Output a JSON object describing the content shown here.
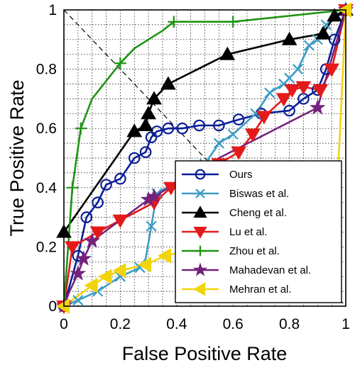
{
  "chart_data": {
    "type": "line",
    "title": "",
    "xlabel": "False Positive Rate",
    "ylabel": "True Positive Rate",
    "xlim": [
      0,
      1
    ],
    "ylim": [
      0,
      1
    ],
    "xticks": [
      "0",
      "0.2",
      "0.4",
      "0.6",
      "0.8",
      "1"
    ],
    "yticks": [
      "0",
      "0.2",
      "0.4",
      "0.6",
      "0.8",
      "1"
    ],
    "grid": "dotted",
    "legend_position": "bottom-right",
    "series": [
      {
        "name": "Ours",
        "color": "#0a1e96",
        "marker": "circle",
        "x": [
          0,
          0.05,
          0.08,
          0.12,
          0.15,
          0.2,
          0.25,
          0.29,
          0.31,
          0.33,
          0.37,
          0.42,
          0.48,
          0.55,
          0.62,
          0.7,
          0.8,
          0.85,
          0.9,
          0.93,
          0.96,
          1
        ],
        "y": [
          0,
          0.17,
          0.3,
          0.35,
          0.41,
          0.43,
          0.5,
          0.52,
          0.57,
          0.59,
          0.6,
          0.6,
          0.61,
          0.61,
          0.63,
          0.65,
          0.66,
          0.7,
          0.73,
          0.8,
          0.9,
          1
        ]
      },
      {
        "name": "Biswas et al.",
        "color": "#3a9cc4",
        "marker": "x",
        "x": [
          0,
          0.05,
          0.12,
          0.2,
          0.27,
          0.29,
          0.31,
          0.33,
          0.5,
          0.55,
          0.6,
          0.68,
          0.73,
          0.78,
          0.8,
          0.83,
          0.87,
          0.9,
          0.93,
          1
        ],
        "y": [
          0,
          0.02,
          0.05,
          0.1,
          0.13,
          0.16,
          0.27,
          0.38,
          0.48,
          0.55,
          0.58,
          0.65,
          0.72,
          0.75,
          0.77,
          0.8,
          0.88,
          0.9,
          0.95,
          1
        ],
        "visible_markers": [
          1,
          2,
          3,
          4,
          6,
          7,
          8,
          9,
          10,
          11,
          12,
          13,
          14,
          15,
          16,
          17,
          18
        ]
      },
      {
        "name": "Cheng et al.",
        "color": "#000000",
        "marker": "triangle-up",
        "x": [
          0,
          0.25,
          0.29,
          0.3,
          0.32,
          0.37,
          0.58,
          0.8,
          0.92,
          0.96,
          1
        ],
        "y": [
          0.25,
          0.59,
          0.61,
          0.65,
          0.7,
          0.75,
          0.85,
          0.9,
          0.92,
          0.98,
          1
        ]
      },
      {
        "name": "Lu et al.",
        "color": "#e41a1a",
        "marker": "triangle-down",
        "x": [
          0,
          0.03,
          0.12,
          0.2,
          0.32,
          0.38,
          0.46,
          0.55,
          0.62,
          0.67,
          0.71,
          0.78,
          0.81,
          0.85,
          0.91,
          0.95,
          1
        ],
        "y": [
          0,
          0.2,
          0.25,
          0.29,
          0.35,
          0.4,
          0.43,
          0.48,
          0.52,
          0.58,
          0.64,
          0.7,
          0.73,
          0.74,
          0.73,
          0.8,
          1
        ]
      },
      {
        "name": "Zhou et al.",
        "color": "#1e9414",
        "marker": "plus",
        "x": [
          0,
          0.03,
          0.06,
          0.1,
          0.2,
          0.25,
          0.35,
          0.39,
          0.6,
          1
        ],
        "y": [
          0,
          0.4,
          0.6,
          0.7,
          0.82,
          0.87,
          0.93,
          0.96,
          0.96,
          1
        ],
        "visible_markers": [
          1,
          2,
          4,
          7,
          8,
          9
        ]
      },
      {
        "name": "Mahadevan et al.",
        "color": "#74237c",
        "marker": "star",
        "x": [
          0,
          0.02,
          0.05,
          0.07,
          0.1,
          0.3,
          0.32,
          0.55,
          0.9,
          1
        ],
        "y": [
          0,
          0.05,
          0.11,
          0.16,
          0.22,
          0.36,
          0.37,
          0.5,
          0.67,
          1
        ],
        "visible_markers": [
          0,
          2,
          3,
          4,
          5,
          6,
          8,
          9
        ]
      },
      {
        "name": "Mehran et al.",
        "color": "#f2d40a",
        "marker": "triangle-left",
        "x": [
          0,
          0.1,
          0.15,
          0.2,
          0.29,
          0.36,
          0.5,
          0.9,
          0.97,
          1
        ],
        "y": [
          0,
          0.07,
          0.1,
          0.12,
          0.14,
          0.17,
          0.2,
          0.25,
          0.4,
          1
        ],
        "visible_markers": [
          0,
          1,
          2,
          3,
          4,
          5,
          9
        ]
      }
    ],
    "reference_line": {
      "style": "dashed",
      "color": "#000000",
      "from": [
        0,
        1
      ],
      "to": [
        1,
        0
      ]
    }
  }
}
